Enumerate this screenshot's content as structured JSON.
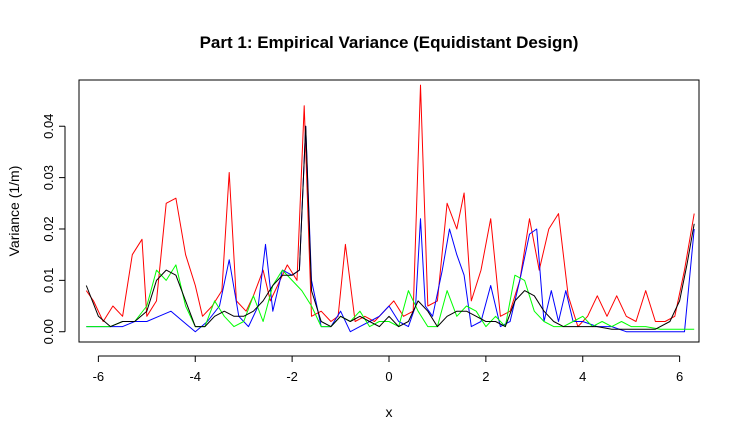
{
  "chart_data": {
    "type": "line",
    "title": "Part 1: Empirical Variance (Equidistant Design)",
    "xlabel": "x",
    "ylabel": "Variance (1/m)",
    "xlim": [
      -6.4,
      6.4
    ],
    "ylim": [
      -0.002,
      0.049
    ],
    "grid": false,
    "legend": "none",
    "xticks": [
      -6,
      -4,
      -2,
      0,
      2,
      4,
      6
    ],
    "xtick_labels": [
      "-6",
      "-4",
      "-2",
      "0",
      "2",
      "4",
      "6"
    ],
    "yticks": [
      0.0,
      0.01,
      0.02,
      0.03,
      0.04
    ],
    "ytick_labels": [
      "0.00",
      "0.01",
      "0.02",
      "0.03",
      "0.04"
    ],
    "series": [
      {
        "color": "#ff0000",
        "x": [
          -6.25,
          -6.1,
          -5.9,
          -5.7,
          -5.5,
          -5.3,
          -5.1,
          -5.0,
          -4.8,
          -4.6,
          -4.4,
          -4.2,
          -4.0,
          -3.85,
          -3.65,
          -3.45,
          -3.3,
          -3.15,
          -2.95,
          -2.8,
          -2.6,
          -2.45,
          -2.3,
          -2.1,
          -1.9,
          -1.75,
          -1.6,
          -1.4,
          -1.2,
          -1.05,
          -0.9,
          -0.7,
          -0.5,
          -0.3,
          -0.1,
          0.1,
          0.3,
          0.5,
          0.65,
          0.8,
          1.0,
          1.2,
          1.4,
          1.55,
          1.7,
          1.9,
          2.1,
          2.3,
          2.5,
          2.7,
          2.9,
          3.1,
          3.3,
          3.5,
          3.7,
          3.9,
          4.1,
          4.3,
          4.5,
          4.7,
          4.9,
          5.1,
          5.3,
          5.5,
          5.7,
          5.9,
          6.1,
          6.3
        ],
        "y": [
          0.008,
          0.006,
          0.002,
          0.005,
          0.003,
          0.015,
          0.018,
          0.003,
          0.006,
          0.025,
          0.026,
          0.015,
          0.009,
          0.003,
          0.005,
          0.008,
          0.031,
          0.006,
          0.004,
          0.007,
          0.012,
          0.006,
          0.009,
          0.013,
          0.01,
          0.044,
          0.003,
          0.004,
          0.002,
          0.003,
          0.017,
          0.002,
          0.003,
          0.002,
          0.004,
          0.006,
          0.003,
          0.004,
          0.048,
          0.005,
          0.006,
          0.025,
          0.02,
          0.027,
          0.006,
          0.012,
          0.022,
          0.003,
          0.004,
          0.01,
          0.022,
          0.012,
          0.02,
          0.023,
          0.007,
          0.001,
          0.003,
          0.007,
          0.003,
          0.007,
          0.003,
          0.002,
          0.008,
          0.002,
          0.002,
          0.003,
          0.012,
          0.023
        ]
      },
      {
        "color": "#0000ff",
        "x": [
          -6.25,
          -6.0,
          -5.75,
          -5.5,
          -5.25,
          -5.0,
          -4.75,
          -4.5,
          -4.25,
          -4.0,
          -3.75,
          -3.5,
          -3.3,
          -3.1,
          -2.9,
          -2.7,
          -2.55,
          -2.4,
          -2.2,
          -2.0,
          -1.85,
          -1.72,
          -1.6,
          -1.4,
          -1.2,
          -1.0,
          -0.8,
          -0.6,
          -0.4,
          -0.2,
          0.0,
          0.2,
          0.4,
          0.55,
          0.65,
          0.75,
          0.9,
          1.1,
          1.25,
          1.4,
          1.55,
          1.7,
          1.9,
          2.1,
          2.3,
          2.5,
          2.7,
          2.9,
          3.05,
          3.2,
          3.35,
          3.5,
          3.65,
          3.8,
          4.0,
          4.3,
          4.6,
          4.9,
          5.2,
          5.5,
          5.8,
          6.1,
          6.3
        ],
        "y": [
          0.001,
          0.001,
          0.001,
          0.001,
          0.002,
          0.002,
          0.003,
          0.004,
          0.002,
          0.0,
          0.002,
          0.005,
          0.014,
          0.003,
          0.001,
          0.005,
          0.017,
          0.004,
          0.012,
          0.011,
          0.012,
          0.04,
          0.01,
          0.001,
          0.001,
          0.004,
          0.0,
          0.001,
          0.002,
          0.003,
          0.005,
          0.002,
          0.001,
          0.005,
          0.022,
          0.005,
          0.003,
          0.012,
          0.02,
          0.015,
          0.011,
          0.001,
          0.002,
          0.009,
          0.001,
          0.002,
          0.01,
          0.019,
          0.02,
          0.002,
          0.008,
          0.002,
          0.008,
          0.002,
          0.002,
          0.001,
          0.001,
          0.0,
          0.0,
          0.0,
          0.0,
          0.0,
          0.02
        ]
      },
      {
        "color": "#00ff00",
        "x": [
          -6.25,
          -6.0,
          -5.75,
          -5.5,
          -5.25,
          -5.0,
          -4.8,
          -4.6,
          -4.4,
          -4.2,
          -4.0,
          -3.8,
          -3.6,
          -3.4,
          -3.2,
          -3.0,
          -2.8,
          -2.6,
          -2.4,
          -2.2,
          -2.0,
          -1.8,
          -1.6,
          -1.4,
          -1.2,
          -1.0,
          -0.8,
          -0.6,
          -0.4,
          -0.2,
          0.0,
          0.2,
          0.4,
          0.6,
          0.8,
          1.0,
          1.2,
          1.4,
          1.6,
          1.8,
          2.0,
          2.2,
          2.4,
          2.6,
          2.8,
          3.0,
          3.2,
          3.4,
          3.6,
          3.8,
          4.0,
          4.2,
          4.4,
          4.6,
          4.8,
          5.0,
          5.3,
          5.6,
          5.9,
          6.2,
          6.3
        ],
        "y": [
          0.001,
          0.001,
          0.001,
          0.002,
          0.002,
          0.005,
          0.012,
          0.01,
          0.013,
          0.005,
          0.001,
          0.001,
          0.006,
          0.003,
          0.001,
          0.002,
          0.007,
          0.002,
          0.009,
          0.012,
          0.01,
          0.008,
          0.005,
          0.001,
          0.001,
          0.003,
          0.002,
          0.004,
          0.001,
          0.002,
          0.002,
          0.001,
          0.008,
          0.004,
          0.001,
          0.001,
          0.008,
          0.003,
          0.005,
          0.004,
          0.001,
          0.003,
          0.001,
          0.011,
          0.01,
          0.004,
          0.002,
          0.001,
          0.001,
          0.002,
          0.003,
          0.001,
          0.002,
          0.001,
          0.002,
          0.001,
          0.001,
          0.0005,
          0.0005,
          0.0005,
          0.0005
        ]
      },
      {
        "color": "#000000",
        "x": [
          -6.25,
          -6.0,
          -5.75,
          -5.5,
          -5.25,
          -5.0,
          -4.8,
          -4.6,
          -4.4,
          -4.2,
          -4.0,
          -3.8,
          -3.6,
          -3.4,
          -3.2,
          -3.0,
          -2.8,
          -2.6,
          -2.4,
          -2.2,
          -2.0,
          -1.85,
          -1.72,
          -1.6,
          -1.4,
          -1.2,
          -1.0,
          -0.8,
          -0.6,
          -0.4,
          -0.2,
          0.0,
          0.2,
          0.4,
          0.6,
          0.8,
          1.0,
          1.2,
          1.4,
          1.6,
          1.8,
          2.0,
          2.2,
          2.4,
          2.6,
          2.8,
          3.0,
          3.2,
          3.4,
          3.6,
          3.8,
          4.0,
          4.3,
          4.6,
          4.9,
          5.2,
          5.5,
          5.8,
          6.0,
          6.15,
          6.3
        ],
        "y": [
          0.009,
          0.003,
          0.001,
          0.002,
          0.002,
          0.004,
          0.01,
          0.012,
          0.011,
          0.006,
          0.001,
          0.001,
          0.003,
          0.004,
          0.003,
          0.003,
          0.004,
          0.006,
          0.009,
          0.011,
          0.011,
          0.012,
          0.04,
          0.008,
          0.002,
          0.001,
          0.003,
          0.002,
          0.003,
          0.002,
          0.001,
          0.003,
          0.001,
          0.002,
          0.006,
          0.004,
          0.001,
          0.003,
          0.004,
          0.004,
          0.003,
          0.002,
          0.002,
          0.001,
          0.006,
          0.008,
          0.007,
          0.004,
          0.002,
          0.001,
          0.001,
          0.001,
          0.001,
          0.0005,
          0.0005,
          0.0005,
          0.0005,
          0.002,
          0.006,
          0.013,
          0.021
        ]
      }
    ]
  }
}
